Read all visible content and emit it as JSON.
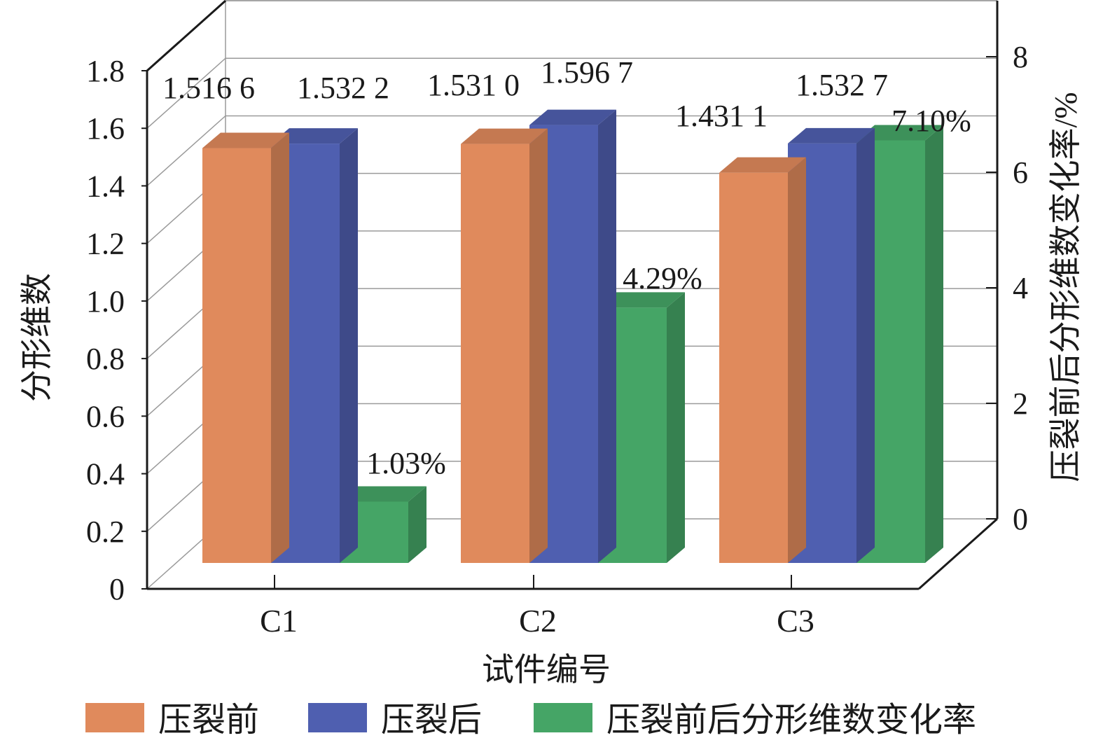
{
  "chart_data": {
    "type": "bar",
    "style": "3d-clustered",
    "categories": [
      "C1",
      "C2",
      "C3"
    ],
    "xlabel": "试件编号",
    "ylabel": "分形维数",
    "y2label": "压裂前后分形维数变化率/%",
    "ylim": [
      0,
      1.8
    ],
    "y2lim": [
      0,
      8
    ],
    "yticks": [
      "0",
      "0.2",
      "0.4",
      "0.6",
      "0.8",
      "1.0",
      "1.2",
      "1.4",
      "1.6",
      "1.8"
    ],
    "y2ticks": [
      "0",
      "2",
      "4",
      "6",
      "8"
    ],
    "grid": true,
    "legend_position": "bottom",
    "series": [
      {
        "name": "压裂前",
        "axis": "left",
        "color": "#E08A5C",
        "values": [
          1.5166,
          1.531,
          1.4311
        ],
        "labels": [
          "1.516 6",
          "1.531 0",
          "1.431 1"
        ]
      },
      {
        "name": "压裂后",
        "axis": "left",
        "color": "#4F5FB0",
        "values": [
          1.5322,
          1.5967,
          1.5327
        ],
        "labels": [
          "1.532 2",
          "1.596 7",
          "1.532 7"
        ]
      },
      {
        "name": "压裂前后分形维数变化率",
        "axis": "right",
        "color": "#45A566",
        "values": [
          1.03,
          4.29,
          7.1
        ],
        "labels": [
          "1.03%",
          "4.29%",
          "7.10%"
        ]
      }
    ]
  }
}
